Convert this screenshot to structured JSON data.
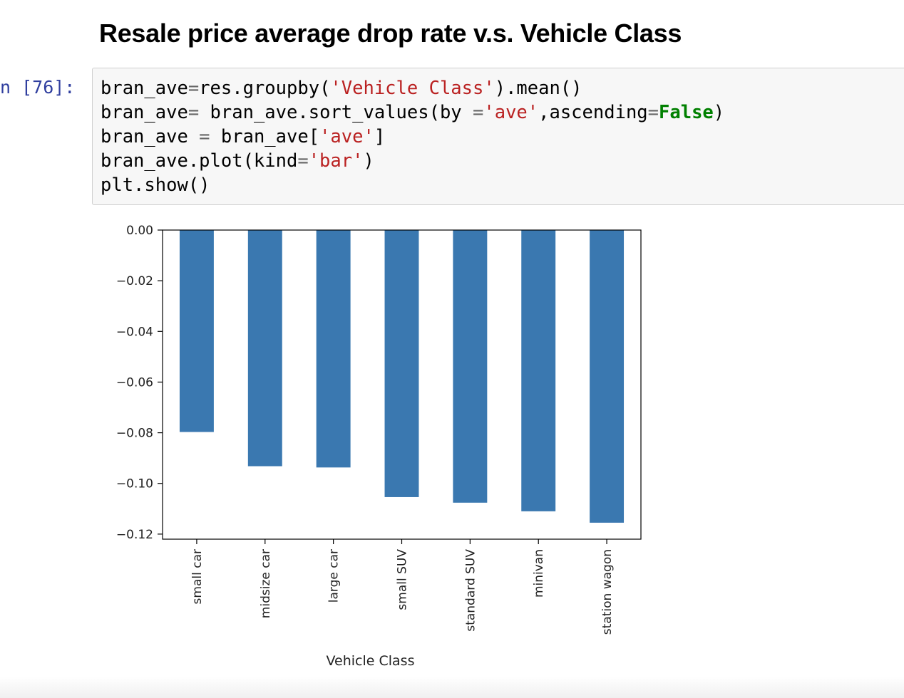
{
  "heading": "Resale price average drop rate v.s. Vehicle Class",
  "cell": {
    "prompt": "n [76]:",
    "lines": [
      [
        {
          "t": "bran_ave"
        },
        {
          "t": "=",
          "c": "op"
        },
        {
          "t": "res.groupby("
        },
        {
          "t": "'Vehicle Class'",
          "c": "str"
        },
        {
          "t": ").mean()"
        }
      ],
      [
        {
          "t": "bran_ave"
        },
        {
          "t": "=",
          "c": "op"
        },
        {
          "t": " bran_ave.sort_values(by "
        },
        {
          "t": "=",
          "c": "op"
        },
        {
          "t": "'ave'",
          "c": "str"
        },
        {
          "t": ",ascending"
        },
        {
          "t": "=",
          "c": "op"
        },
        {
          "t": "False",
          "c": "kw"
        },
        {
          "t": ")"
        }
      ],
      [
        {
          "t": "bran_ave "
        },
        {
          "t": "=",
          "c": "op"
        },
        {
          "t": " bran_ave["
        },
        {
          "t": "'ave'",
          "c": "str"
        },
        {
          "t": "]"
        }
      ],
      [
        {
          "t": "bran_ave.plot(kind"
        },
        {
          "t": "=",
          "c": "op"
        },
        {
          "t": "'bar'",
          "c": "str"
        },
        {
          "t": ")"
        }
      ],
      [
        {
          "t": "plt.show()"
        }
      ]
    ]
  },
  "chart_data": {
    "type": "bar",
    "title": "",
    "xlabel": "Vehicle Class",
    "ylabel": "",
    "categories": [
      "small car",
      "midsize car",
      "large car",
      "small SUV",
      "standard SUV",
      "minivan",
      "station wagon"
    ],
    "values": [
      -0.0797,
      -0.0932,
      -0.0937,
      -0.1054,
      -0.1076,
      -0.111,
      -0.1155
    ],
    "ylim": [
      -0.122,
      0.0
    ],
    "yticks": [
      0.0,
      -0.02,
      -0.04,
      -0.06,
      -0.08,
      -0.1,
      -0.12
    ],
    "ytick_labels": [
      "0.00",
      "−0.02",
      "−0.04",
      "−0.06",
      "−0.08",
      "−0.10",
      "−0.12"
    ],
    "bar_color": "#3a78b0",
    "grid": false,
    "legend": "none"
  }
}
